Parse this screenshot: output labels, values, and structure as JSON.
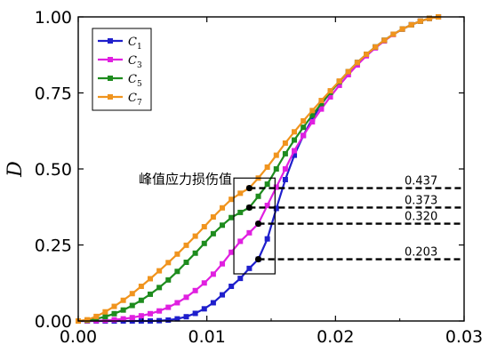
{
  "chart_data": {
    "type": "line",
    "title": "",
    "xlabel": "",
    "ylabel": "D",
    "xlim": [
      0,
      0.03
    ],
    "ylim": [
      0,
      1
    ],
    "x_ticks": [
      {
        "value": 0.0,
        "label": "0.00"
      },
      {
        "value": 0.01,
        "label": "0.01"
      },
      {
        "value": 0.02,
        "label": "0.02"
      },
      {
        "value": 0.03,
        "label": "0.03"
      }
    ],
    "y_ticks": [
      {
        "value": 0.0,
        "label": "0.00"
      },
      {
        "value": 0.25,
        "label": "0.25"
      },
      {
        "value": 0.5,
        "label": "0.50"
      },
      {
        "value": 0.75,
        "label": "0.75"
      },
      {
        "value": 1.0,
        "label": "1.00"
      }
    ],
    "grid": false,
    "legend_position": "top-left",
    "series": [
      {
        "name": "C",
        "subscript": "1",
        "color": "#1f1fcc",
        "x": [
          0.0,
          0.0007,
          0.0014,
          0.0021,
          0.0028,
          0.0035,
          0.0042,
          0.0049,
          0.0056,
          0.0063,
          0.007,
          0.0077,
          0.0084,
          0.0091,
          0.0098,
          0.0105,
          0.0112,
          0.0119,
          0.0126,
          0.0133,
          0.014,
          0.0147,
          0.0154,
          0.0161,
          0.0168,
          0.0175,
          0.0182,
          0.0189,
          0.0196,
          0.0203,
          0.021,
          0.0217,
          0.0224,
          0.0231,
          0.0238,
          0.0245,
          0.0252,
          0.0259,
          0.0266,
          0.0273,
          0.028
        ],
        "y": [
          0.0,
          0.0,
          0.0,
          0.0,
          0.0,
          0.0,
          0.0,
          0.0,
          0.0,
          0.001,
          0.003,
          0.007,
          0.014,
          0.025,
          0.04,
          0.06,
          0.086,
          0.114,
          0.14,
          0.173,
          0.203,
          0.27,
          0.37,
          0.465,
          0.545,
          0.61,
          0.665,
          0.712,
          0.752,
          0.788,
          0.82,
          0.85,
          0.877,
          0.901,
          0.923,
          0.943,
          0.96,
          0.974,
          0.986,
          0.995,
          1.0
        ]
      },
      {
        "name": "C",
        "subscript": "3",
        "color": "#e020e0",
        "x": [
          0.0,
          0.0007,
          0.0014,
          0.0021,
          0.0028,
          0.0035,
          0.0042,
          0.0049,
          0.0056,
          0.0063,
          0.007,
          0.0077,
          0.0084,
          0.0091,
          0.0098,
          0.0105,
          0.0112,
          0.0119,
          0.0126,
          0.0133,
          0.014,
          0.0147,
          0.0154,
          0.0161,
          0.0168,
          0.0175,
          0.0182,
          0.0189,
          0.0196,
          0.0203,
          0.021,
          0.0217,
          0.0224,
          0.0231,
          0.0238,
          0.0245,
          0.0252,
          0.0259,
          0.0266,
          0.0273,
          0.028
        ],
        "y": [
          0.0,
          0.0,
          0.001,
          0.002,
          0.004,
          0.007,
          0.011,
          0.017,
          0.024,
          0.033,
          0.045,
          0.06,
          0.078,
          0.1,
          0.125,
          0.154,
          0.188,
          0.226,
          0.262,
          0.29,
          0.32,
          0.38,
          0.44,
          0.5,
          0.56,
          0.61,
          0.655,
          0.697,
          0.737,
          0.775,
          0.81,
          0.842,
          0.872,
          0.898,
          0.921,
          0.942,
          0.96,
          0.974,
          0.986,
          0.995,
          1.0
        ]
      },
      {
        "name": "C",
        "subscript": "5",
        "color": "#1e8c1e",
        "x": [
          0.0,
          0.0007,
          0.0014,
          0.0021,
          0.0028,
          0.0035,
          0.0042,
          0.0049,
          0.0056,
          0.0063,
          0.007,
          0.0077,
          0.0084,
          0.0091,
          0.0098,
          0.0105,
          0.0112,
          0.0119,
          0.0126,
          0.0133,
          0.014,
          0.0147,
          0.0154,
          0.0161,
          0.0168,
          0.0175,
          0.0182,
          0.0189,
          0.0196,
          0.0203,
          0.021,
          0.0217,
          0.0224,
          0.0231,
          0.0238,
          0.0245,
          0.0252,
          0.0259,
          0.0266,
          0.0273,
          0.028
        ],
        "y": [
          0.0,
          0.002,
          0.007,
          0.014,
          0.024,
          0.036,
          0.051,
          0.068,
          0.088,
          0.11,
          0.135,
          0.163,
          0.193,
          0.223,
          0.255,
          0.287,
          0.315,
          0.34,
          0.357,
          0.373,
          0.41,
          0.45,
          0.5,
          0.55,
          0.595,
          0.637,
          0.677,
          0.715,
          0.752,
          0.787,
          0.82,
          0.85,
          0.877,
          0.901,
          0.923,
          0.943,
          0.96,
          0.974,
          0.986,
          0.995,
          1.0
        ]
      },
      {
        "name": "C",
        "subscript": "7",
        "color": "#f0941e",
        "x": [
          0.0,
          0.0007,
          0.0014,
          0.0021,
          0.0028,
          0.0035,
          0.0042,
          0.0049,
          0.0056,
          0.0063,
          0.007,
          0.0077,
          0.0084,
          0.0091,
          0.0098,
          0.0105,
          0.0112,
          0.0119,
          0.0126,
          0.0133,
          0.014,
          0.0147,
          0.0154,
          0.0161,
          0.0168,
          0.0175,
          0.0182,
          0.0189,
          0.0196,
          0.0203,
          0.021,
          0.0217,
          0.0224,
          0.0231,
          0.0238,
          0.0245,
          0.0252,
          0.0259,
          0.0266,
          0.0273,
          0.028
        ],
        "y": [
          0.0,
          0.004,
          0.015,
          0.03,
          0.048,
          0.068,
          0.09,
          0.114,
          0.139,
          0.165,
          0.192,
          0.22,
          0.249,
          0.279,
          0.31,
          0.342,
          0.372,
          0.4,
          0.42,
          0.437,
          0.47,
          0.506,
          0.545,
          0.585,
          0.622,
          0.658,
          0.692,
          0.725,
          0.757,
          0.789,
          0.82,
          0.85,
          0.877,
          0.901,
          0.923,
          0.943,
          0.96,
          0.974,
          0.986,
          0.995,
          1.0
        ]
      }
    ],
    "annotation": {
      "label": "峰值应力损伤值",
      "box": {
        "x0": 0.0121,
        "x1": 0.0153,
        "y0": 0.155,
        "y1": 0.47
      },
      "points": [
        {
          "x": 0.0133,
          "y": 0.437,
          "label": "0.437"
        },
        {
          "x": 0.0133,
          "y": 0.373,
          "label": "0.373"
        },
        {
          "x": 0.014,
          "y": 0.32,
          "label": "0.320"
        },
        {
          "x": 0.014,
          "y": 0.203,
          "label": "0.203"
        }
      ],
      "dash_end_x": 0.03
    }
  }
}
